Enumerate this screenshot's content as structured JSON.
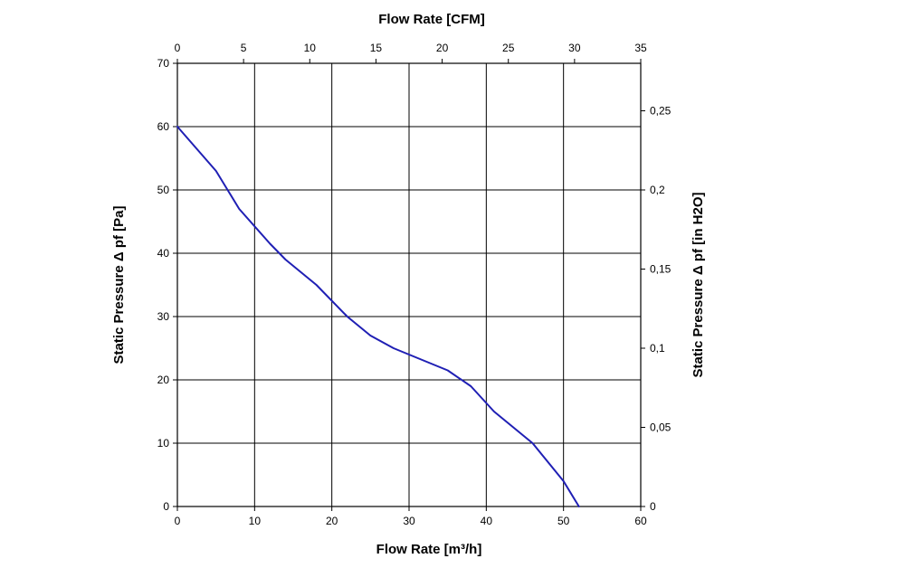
{
  "chart_data": {
    "type": "line",
    "title": "",
    "xlabel_bottom": "Flow Rate [m³/h]",
    "xlabel_top": "Flow Rate [CFM]",
    "ylabel_left": "Static Pressure Δ pf [Pa]",
    "ylabel_right": "Static Pressure Δ pf [in H2O]",
    "xlim": [
      0,
      60
    ],
    "ylim": [
      0,
      70
    ],
    "x_top_lim": [
      0,
      35
    ],
    "y_right_lim": [
      0,
      0.28
    ],
    "grid": true,
    "x_ticks": [
      "0",
      "10",
      "20",
      "30",
      "40",
      "50",
      "60"
    ],
    "y_ticks": [
      "0",
      "10",
      "20",
      "30",
      "40",
      "50",
      "60",
      "70"
    ],
    "x_top_ticks": [
      "0",
      "5",
      "10",
      "15",
      "20",
      "25",
      "30",
      "35"
    ],
    "y_right_ticks": [
      "0",
      "0,05",
      "0,1",
      "0,15",
      "0,2",
      "0,25"
    ],
    "y_right_tick_values": [
      0,
      0.05,
      0.1,
      0.15,
      0.2,
      0.25
    ],
    "series": [
      {
        "color": "#1f1fb4",
        "x": [
          0,
          5,
          8,
          12,
          14,
          18,
          22,
          25,
          28,
          31,
          35,
          38,
          41,
          46,
          50,
          52
        ],
        "y": [
          60,
          53,
          47,
          41.5,
          39,
          35,
          30,
          27,
          25,
          23.5,
          21.5,
          19,
          15,
          10,
          4,
          0
        ]
      }
    ]
  }
}
